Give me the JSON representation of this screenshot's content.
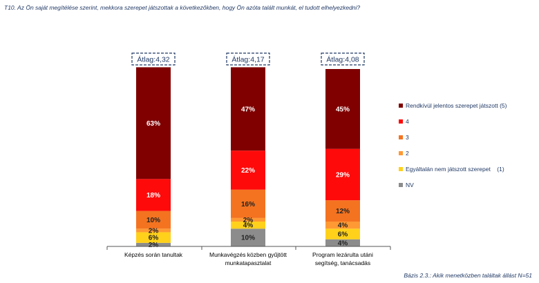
{
  "question": "T10. Az Ön saját megítélése szerint, mekkora szerepet játszottak a következőkben, hogy Ön azóta talált munkát, el tudott elhelyezkedni?",
  "base_note": "Bázis 2.3.: Akik menetközben találtak állást N=51",
  "chart_data": {
    "type": "bar",
    "stacked": true,
    "normalized_percent": true,
    "categories": [
      [
        "Képzés során tanultak"
      ],
      [
        "Munkavégzés közben gyűjtött",
        "munkatapasztalat"
      ],
      [
        "Program lezárulta utáni",
        "segítség, tanácsadás"
      ]
    ],
    "averages": [
      "Átlag:4,32",
      "Átlag:4,17",
      "Átlag:4,08"
    ],
    "series": [
      {
        "name": "NV",
        "color": "#8c8c8c",
        "values": [
          2,
          10,
          4
        ],
        "labels": [
          "2%",
          "10%",
          "4%"
        ],
        "label_dark": true
      },
      {
        "name": "Egyáltalán nem játszott szerepet    (1)",
        "color": "#ffd11a",
        "values": [
          6,
          4,
          6
        ],
        "labels": [
          "6%",
          "4%",
          "6%"
        ],
        "label_dark": true
      },
      {
        "name": "2",
        "color": "#ff9933",
        "values": [
          2,
          2,
          4
        ],
        "labels": [
          "2%",
          "2%",
          "4%"
        ],
        "label_dark": true
      },
      {
        "name": "3",
        "color": "#f47320",
        "values": [
          10,
          16,
          12
        ],
        "labels": [
          "10%",
          "16%",
          "12%"
        ],
        "label_dark": true
      },
      {
        "name": "4",
        "color": "#ff0a0a",
        "values": [
          18,
          22,
          29
        ],
        "labels": [
          "18%",
          "22%",
          "29%"
        ],
        "label_dark": false
      },
      {
        "name": "Rendkívül jelentos szerepet játszott (5)",
        "color": "#800000",
        "values": [
          63,
          47,
          45
        ],
        "labels": [
          "63%",
          "47%",
          "45%"
        ],
        "label_dark": false
      }
    ],
    "legend_order": [
      5,
      4,
      3,
      2,
      1,
      0
    ],
    "ylim": [
      0,
      100
    ],
    "legend_position": "right"
  }
}
